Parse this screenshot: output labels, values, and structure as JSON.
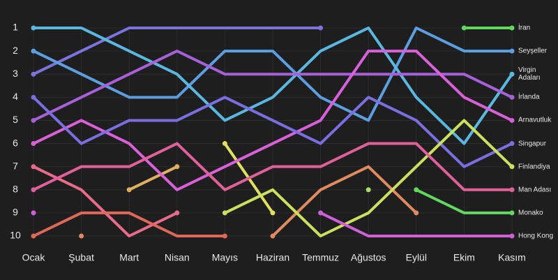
{
  "chart_data": {
    "type": "bump",
    "categories": [
      "Ocak",
      "Şubat",
      "Mart",
      "Nisan",
      "Mayıs",
      "Haziran",
      "Temmuz",
      "Ağustos",
      "Eylül",
      "Ekim",
      "Kasım"
    ],
    "ylim": [
      1,
      10
    ],
    "yticks": [
      1,
      2,
      3,
      4,
      5,
      6,
      7,
      8,
      9,
      10
    ],
    "inverted": true,
    "grid": true,
    "series": [
      {
        "color": "#7a74de",
        "values": [
          3,
          2,
          1,
          1,
          1,
          1,
          1,
          null,
          null,
          null,
          null
        ]
      },
      {
        "color": "#e86a8c",
        "values": [
          7,
          8,
          10,
          9,
          null,
          null,
          null,
          null,
          null,
          null,
          null
        ]
      },
      {
        "color": "#e0685a",
        "values": [
          10,
          9,
          9,
          10,
          10,
          null,
          null,
          null,
          null,
          null,
          null
        ]
      },
      {
        "color": "#e08a60",
        "values": [
          null,
          10,
          null,
          null,
          null,
          10,
          8,
          7,
          9,
          null,
          null
        ]
      },
      {
        "color": "#e0b060",
        "values": [
          null,
          null,
          8,
          7,
          null,
          null,
          null,
          null,
          null,
          null,
          null
        ]
      },
      {
        "color": "#dde060",
        "values": [
          null,
          null,
          null,
          null,
          6,
          9,
          null,
          null,
          null,
          null,
          null
        ]
      },
      {
        "color": "#a8e060",
        "values": [
          null,
          null,
          null,
          null,
          null,
          null,
          null,
          8,
          null,
          null,
          null
        ]
      },
      {
        "name": "İran",
        "color": "#62d860",
        "values": [
          null,
          null,
          null,
          null,
          null,
          null,
          null,
          null,
          null,
          1,
          1
        ]
      },
      {
        "name": "Seyşeller",
        "color": "#5c9ee0",
        "values": [
          2,
          3,
          4,
          4,
          2,
          2,
          4,
          5,
          1,
          2,
          2
        ]
      },
      {
        "name": "Virgin Adaları",
        "color": "#5ab8e0",
        "values": [
          1,
          1,
          2,
          3,
          5,
          4,
          2,
          1,
          4,
          6,
          3
        ]
      },
      {
        "name": "İrlanda",
        "color": "#a660d8",
        "values": [
          5,
          4,
          3,
          2,
          3,
          3,
          3,
          3,
          3,
          3,
          4
        ]
      },
      {
        "name": "Arnavutluk",
        "color": "#d860d8",
        "values": [
          6,
          5,
          6,
          8,
          7,
          6,
          5,
          2,
          2,
          4,
          5
        ]
      },
      {
        "name": "Singapur",
        "color": "#7a6ee0",
        "values": [
          4,
          6,
          5,
          5,
          4,
          5,
          6,
          4,
          5,
          7,
          6
        ]
      },
      {
        "name": "Finlandiya",
        "color": "#cce060",
        "values": [
          null,
          null,
          null,
          null,
          9,
          8,
          10,
          9,
          7,
          5,
          7
        ]
      },
      {
        "name": "Man Adası",
        "color": "#e0609a",
        "values": [
          8,
          7,
          7,
          6,
          8,
          7,
          7,
          6,
          6,
          8,
          8
        ]
      },
      {
        "name": "Monako",
        "color": "#62d860",
        "values": [
          null,
          null,
          null,
          null,
          null,
          null,
          null,
          null,
          8,
          9,
          9
        ]
      },
      {
        "name": "Hong Kong",
        "color": "#d060d8",
        "values": [
          9,
          null,
          null,
          null,
          null,
          null,
          9,
          10,
          10,
          10,
          10
        ]
      }
    ]
  }
}
